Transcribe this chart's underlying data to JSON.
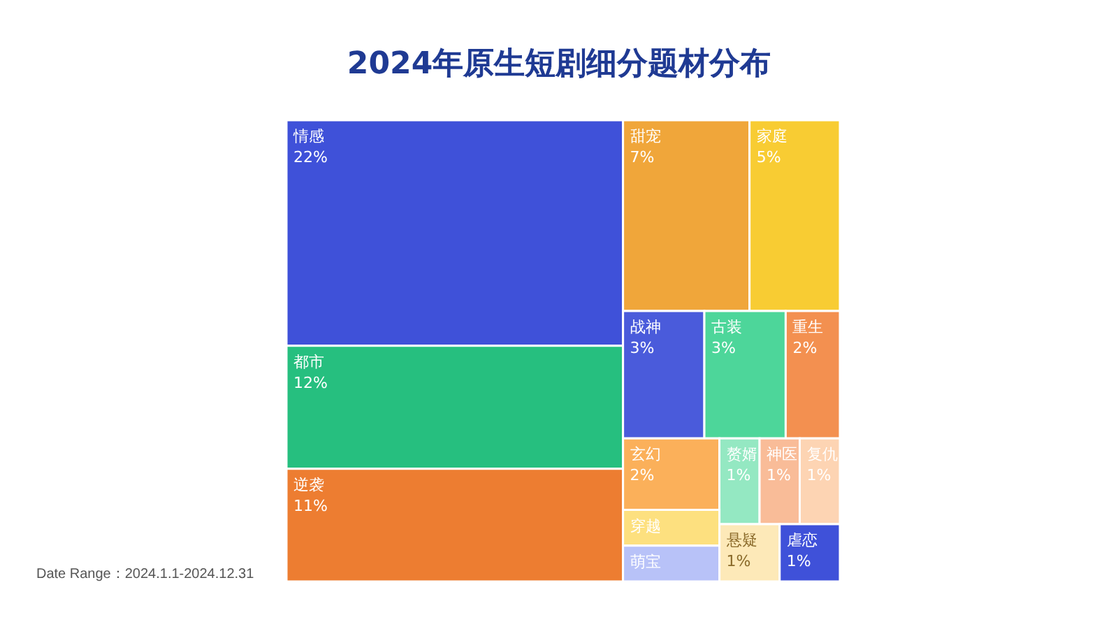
{
  "chart_data": {
    "type": "other",
    "title": "2024年原生短剧细分题材分布",
    "categories": [
      "情感",
      "都市",
      "逆袭",
      "甜宠",
      "家庭",
      "战神",
      "古装",
      "重生",
      "玄幻",
      "赘婿",
      "神医",
      "复仇",
      "悬疑",
      "虐恋",
      "穿越",
      "萌宝"
    ],
    "values": [
      22,
      12,
      11,
      7,
      5,
      3,
      3,
      2,
      2,
      1,
      1,
      1,
      1,
      1,
      null,
      null
    ],
    "value_labels": [
      "22%",
      "12%",
      "11%",
      "7%",
      "5%",
      "3%",
      "3%",
      "2%",
      "2%",
      "1%",
      "1%",
      "1%",
      "1%",
      "1%",
      null,
      null
    ],
    "colors": [
      "#3f51d9",
      "#26bf7f",
      "#ed7d31",
      "#f0a63a",
      "#f8cc33",
      "#4a5bdb",
      "#4dd69a",
      "#f39050",
      "#fbb05a",
      "#94e8c2",
      "#f9bc98",
      "#fdd4b3",
      "#fde9b8",
      "#3f51d9",
      "#fde07f",
      "#b8c2f8"
    ],
    "annotations": [
      "Date Range：2024.1.1-2024.12.31"
    ]
  }
}
